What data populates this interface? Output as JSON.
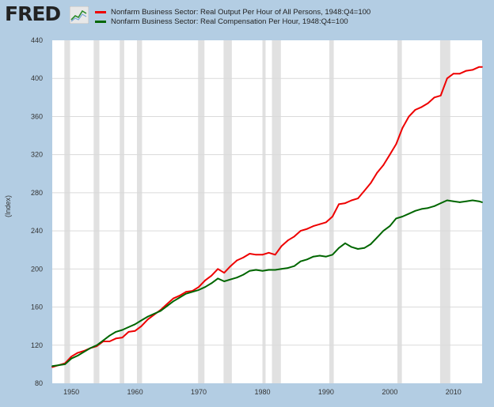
{
  "brand": {
    "name": "FRED"
  },
  "legend": [
    {
      "label": "Nonfarm Business Sector: Real Output Per Hour of All Persons, 1948:Q4=100",
      "color": "#ee0000"
    },
    {
      "label": "Nonfarm Business Sector: Real Compensation Per Hour, 1948:Q4=100",
      "color": "#006600"
    }
  ],
  "chart_data": {
    "type": "line",
    "ylabel": "(Index)",
    "ylim": [
      80,
      440
    ],
    "xlim": [
      1947,
      2014.5
    ],
    "yticks": [
      80,
      120,
      160,
      200,
      240,
      280,
      320,
      360,
      400,
      440
    ],
    "xticks": [
      1950,
      1960,
      1970,
      1980,
      1990,
      2000,
      2010
    ],
    "grid": "horizontal",
    "recessions": [
      [
        1948.9,
        1949.8
      ],
      [
        1953.5,
        1954.4
      ],
      [
        1957.6,
        1958.3
      ],
      [
        1960.3,
        1961.1
      ],
      [
        1969.9,
        1970.9
      ],
      [
        1973.9,
        1975.2
      ],
      [
        1980.0,
        1980.5
      ],
      [
        1981.5,
        1982.9
      ],
      [
        1990.5,
        1991.2
      ],
      [
        2001.2,
        2001.9
      ],
      [
        2007.9,
        2009.5
      ]
    ],
    "series": [
      {
        "name": "Nonfarm Business Sector: Real Output Per Hour of All Persons, 1948:Q4=100",
        "color": "#ee0000",
        "x": [
          1947,
          1948,
          1949,
          1950,
          1951,
          1952,
          1953,
          1954,
          1955,
          1956,
          1957,
          1958,
          1959,
          1960,
          1961,
          1962,
          1963,
          1964,
          1965,
          1966,
          1967,
          1968,
          1969,
          1970,
          1971,
          1972,
          1973,
          1974,
          1975,
          1976,
          1977,
          1978,
          1979,
          1980,
          1981,
          1982,
          1983,
          1984,
          1985,
          1986,
          1987,
          1988,
          1989,
          1990,
          1991,
          1992,
          1993,
          1994,
          1995,
          1996,
          1997,
          1998,
          1999,
          2000,
          2001,
          2002,
          2003,
          2004,
          2005,
          2006,
          2007,
          2008,
          2009,
          2010,
          2011,
          2012,
          2013,
          2014,
          2014.5
        ],
        "values": [
          97,
          99,
          101,
          108,
          112,
          114,
          117,
          119,
          124,
          124,
          127,
          128,
          134,
          135,
          140,
          147,
          152,
          157,
          163,
          169,
          172,
          176,
          177,
          181,
          188,
          193,
          200,
          196,
          203,
          209,
          212,
          216,
          215,
          215,
          217,
          215,
          224,
          230,
          234,
          240,
          242,
          245,
          247,
          249,
          255,
          268,
          269,
          272,
          274,
          282,
          290,
          301,
          309,
          320,
          331,
          348,
          360,
          367,
          370,
          374,
          380,
          382,
          400,
          405,
          405,
          408,
          409,
          412,
          412
        ]
      },
      {
        "name": "Nonfarm Business Sector: Real Compensation Per Hour, 1948:Q4=100",
        "color": "#006600",
        "x": [
          1947,
          1948,
          1949,
          1950,
          1951,
          1952,
          1953,
          1954,
          1955,
          1956,
          1957,
          1958,
          1959,
          1960,
          1961,
          1962,
          1963,
          1964,
          1965,
          1966,
          1967,
          1968,
          1969,
          1970,
          1971,
          1972,
          1973,
          1974,
          1975,
          1976,
          1977,
          1978,
          1979,
          1980,
          1981,
          1982,
          1983,
          1984,
          1985,
          1986,
          1987,
          1988,
          1989,
          1990,
          1991,
          1992,
          1993,
          1994,
          1995,
          1996,
          1997,
          1998,
          1999,
          2000,
          2001,
          2002,
          2003,
          2004,
          2005,
          2006,
          2007,
          2008,
          2009,
          2010,
          2011,
          2012,
          2013,
          2014,
          2014.5
        ],
        "values": [
          98,
          99,
          100,
          106,
          109,
          113,
          117,
          120,
          125,
          130,
          134,
          136,
          139,
          142,
          146,
          150,
          153,
          156,
          161,
          166,
          170,
          174,
          176,
          178,
          181,
          185,
          190,
          187,
          189,
          191,
          194,
          198,
          199,
          198,
          199,
          199,
          200,
          201,
          203,
          208,
          210,
          213,
          214,
          213,
          215,
          222,
          227,
          223,
          221,
          222,
          226,
          233,
          240,
          245,
          253,
          255,
          258,
          261,
          263,
          264,
          266,
          269,
          272,
          271,
          270,
          271,
          272,
          271,
          270
        ]
      }
    ]
  }
}
